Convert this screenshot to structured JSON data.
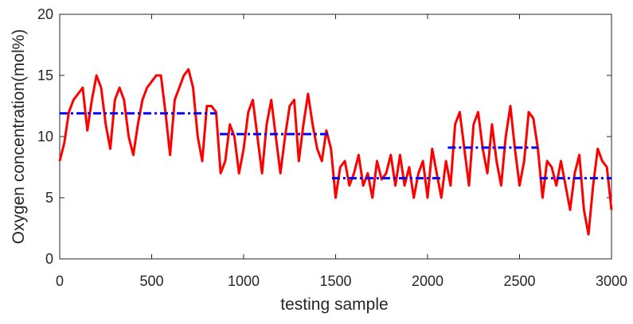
{
  "chart_data": {
    "type": "line",
    "xlabel": "testing sample",
    "ylabel": "Oxygen concentration(mol%)",
    "xlim": [
      0,
      3000
    ],
    "xticks": [
      0,
      500,
      1000,
      1500,
      2000,
      2500,
      3000
    ],
    "ylim": [
      0,
      20
    ],
    "yticks": [
      0,
      5,
      10,
      15,
      20
    ],
    "series": [
      {
        "color": "#ff0000",
        "style": "solid",
        "x": [
          0,
          25,
          50,
          75,
          100,
          125,
          150,
          175,
          200,
          225,
          250,
          275,
          300,
          325,
          350,
          375,
          400,
          425,
          450,
          475,
          500,
          525,
          550,
          575,
          600,
          625,
          650,
          675,
          700,
          725,
          750,
          775,
          800,
          825,
          850,
          875,
          900,
          925,
          950,
          975,
          1000,
          1025,
          1050,
          1075,
          1100,
          1125,
          1150,
          1175,
          1200,
          1225,
          1250,
          1275,
          1300,
          1325,
          1350,
          1375,
          1400,
          1425,
          1450,
          1475,
          1500,
          1525,
          1550,
          1575,
          1600,
          1625,
          1650,
          1675,
          1700,
          1725,
          1750,
          1775,
          1800,
          1825,
          1850,
          1875,
          1900,
          1925,
          1950,
          1975,
          2000,
          2025,
          2050,
          2075,
          2100,
          2125,
          2150,
          2175,
          2200,
          2225,
          2250,
          2275,
          2300,
          2325,
          2350,
          2375,
          2400,
          2425,
          2450,
          2475,
          2500,
          2525,
          2550,
          2575,
          2600,
          2625,
          2650,
          2675,
          2700,
          2725,
          2750,
          2775,
          2800,
          2825,
          2850,
          2875,
          2900,
          2925,
          2950,
          2975,
          3000
        ],
        "values": [
          8,
          9.5,
          12,
          13,
          13.5,
          14,
          10.5,
          13,
          15,
          14,
          11,
          9,
          13,
          14,
          13,
          10,
          8.5,
          11,
          13,
          14,
          14.5,
          15,
          15,
          12,
          8.5,
          13,
          14,
          15,
          15.5,
          14,
          10,
          8,
          12.5,
          12.5,
          12,
          7,
          8,
          11,
          10,
          7,
          9,
          12,
          13,
          10,
          7,
          11,
          13,
          10,
          7,
          10,
          12.5,
          13,
          8,
          11,
          13.5,
          11,
          9,
          8,
          10.5,
          9,
          5,
          7.5,
          8,
          6,
          7,
          8.5,
          6,
          7,
          5,
          8,
          6.5,
          7,
          8.5,
          6,
          8.5,
          6,
          7.5,
          5,
          7,
          8,
          5,
          9,
          7,
          5,
          8,
          6,
          11,
          12,
          9,
          6,
          11,
          12,
          9,
          7,
          11,
          8,
          6,
          10,
          12.5,
          9,
          6,
          8,
          12,
          11.5,
          9,
          5,
          8,
          7.5,
          6,
          8,
          6,
          4,
          7,
          8.5,
          4,
          2,
          6,
          9,
          8,
          7.5,
          4
        ]
      },
      {
        "color": "#0000ff",
        "style": "dashdot",
        "x": [
          0,
          850,
          860,
          870,
          1470,
          1475,
          1480,
          2075,
          2090,
          2110,
          2600,
          2605,
          2610,
          3000
        ],
        "values": [
          11.9,
          11.9,
          null,
          10.2,
          10.2,
          null,
          6.6,
          6.6,
          null,
          9.1,
          9.1,
          null,
          6.6,
          6.6
        ]
      }
    ]
  }
}
